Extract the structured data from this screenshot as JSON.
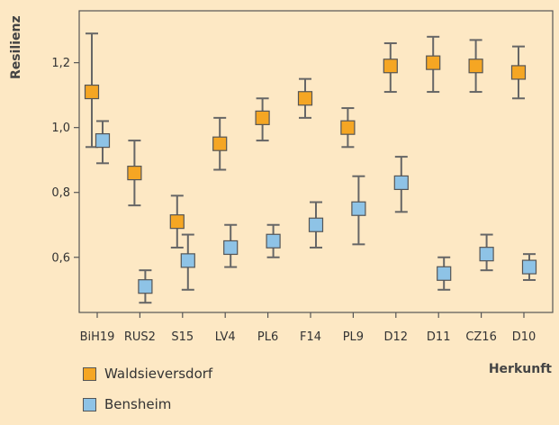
{
  "chart_data": {
    "type": "scatter",
    "xlabel": "Herkunft",
    "ylabel": "Resilienz",
    "categories": [
      "BiH19",
      "RUS2",
      "S15",
      "LV4",
      "PL6",
      "F14",
      "PL9",
      "D12",
      "D11",
      "CZ16",
      "D10"
    ],
    "ylim": [
      0.43,
      1.36
    ],
    "yticks": [
      0.6,
      0.8,
      1.0,
      1.2
    ],
    "ytick_labels": [
      "0,6",
      "0,8",
      "1,0",
      "1,2"
    ],
    "grid": false,
    "legend_position": "bottom-left",
    "series": [
      {
        "name": "Waldsieversdorf",
        "color": "#f5a623",
        "values": [
          1.11,
          0.86,
          0.71,
          0.95,
          1.03,
          1.09,
          1.0,
          1.19,
          1.2,
          1.19,
          1.17
        ],
        "error_low": [
          0.94,
          0.76,
          0.63,
          0.87,
          0.96,
          1.03,
          0.94,
          1.11,
          1.11,
          1.11,
          1.09
        ],
        "error_high": [
          1.29,
          0.96,
          0.79,
          1.03,
          1.09,
          1.15,
          1.06,
          1.26,
          1.28,
          1.27,
          1.25
        ]
      },
      {
        "name": "Bensheim",
        "color": "#8ec3e6",
        "values": [
          0.96,
          0.51,
          0.59,
          0.63,
          0.65,
          0.7,
          0.75,
          0.83,
          0.55,
          0.61,
          0.57
        ],
        "error_low": [
          0.89,
          0.46,
          0.5,
          0.57,
          0.6,
          0.63,
          0.64,
          0.74,
          0.5,
          0.56,
          0.53
        ],
        "error_high": [
          1.02,
          0.56,
          0.67,
          0.7,
          0.7,
          0.77,
          0.85,
          0.91,
          0.6,
          0.67,
          0.61
        ]
      }
    ]
  }
}
